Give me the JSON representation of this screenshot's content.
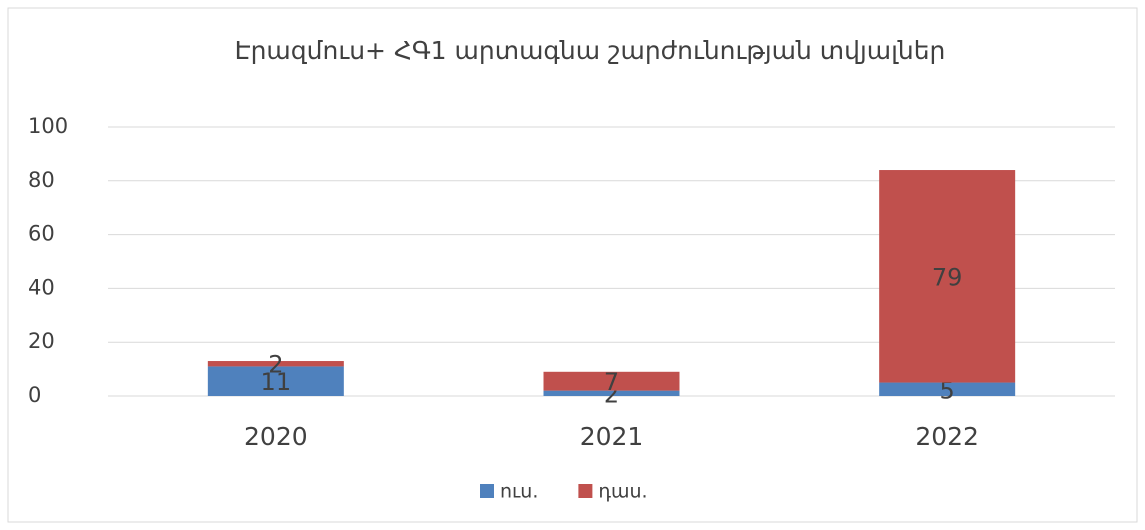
{
  "chart_data": {
    "type": "stacked_bar",
    "title": "Էրազմուս+ ՀԳ1 արտագնա շարժունության տվյալներ",
    "categories": [
      "2020",
      "2021",
      "2022"
    ],
    "series": [
      {
        "name": "ուս.",
        "color": "#4f81bd",
        "values": [
          11,
          2,
          5
        ]
      },
      {
        "name": "դաս.",
        "color": "#c0504d",
        "values": [
          2,
          7,
          79
        ]
      }
    ],
    "ylim": [
      0,
      100
    ],
    "yticks": [
      0,
      20,
      40,
      60,
      80,
      100
    ],
    "grid": true,
    "legend": "bottom"
  }
}
